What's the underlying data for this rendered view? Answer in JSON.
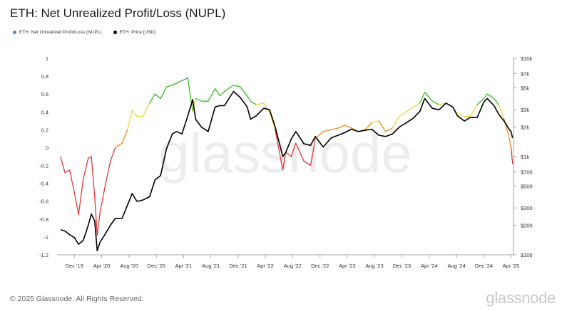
{
  "header": {
    "title": "ETH: Net Unrealized Profit/Loss (NUPL)"
  },
  "legend": [
    {
      "label": "ETH: Net Unrealized Profit/Loss (NUPL)",
      "color": "#5b7be0"
    },
    {
      "label": "ETH: Price [USD]",
      "color": "#000000"
    }
  ],
  "footer": {
    "copyright": "© 2025 Glassnode. All Rights Reserved.",
    "brand": "glassnode"
  },
  "watermark": "glassnode",
  "chart_data": {
    "type": "line",
    "x_ticks": [
      "Dec '19",
      "Apr '20",
      "Aug '20",
      "Dec '20",
      "Apr '21",
      "Aug '21",
      "Dec '21",
      "Apr '22",
      "Aug '22",
      "Dec '22",
      "Apr '23",
      "Aug '23",
      "Dec '23",
      "Apr '24",
      "Aug '24",
      "Dec '24",
      "Apr '25"
    ],
    "y_left_ticks": [
      "1",
      "0.8",
      "0.6",
      "0.4",
      "0.2",
      "0",
      "-0.2",
      "-0.4",
      "-0.6",
      "-0.8",
      "-1",
      "-1.2"
    ],
    "y_right_ticks": [
      "$10k",
      "$7k",
      "$5k",
      "$3k",
      "$2k",
      "$1k",
      "$700",
      "$500",
      "$300",
      "$200",
      "$100"
    ],
    "ylim_left": [
      -1.2,
      1
    ],
    "ylim_right": [
      100,
      10000
    ],
    "right_scale": "log",
    "grid": false,
    "series": [
      {
        "name": "ETH: Net Unrealized Profit/Loss (NUPL)",
        "color_zones": {
          "capitulation": "#e03a3a",
          "hope_fear": "#f08a1c",
          "optimism_anxiety": "#f2d43c",
          "belief_denial": "#34c21c",
          "euphoria_greed": "#5b7be0"
        },
        "x": [
          "2019-10-01",
          "2019-10-20",
          "2019-11-10",
          "2019-12-01",
          "2019-12-20",
          "2020-01-10",
          "2020-02-01",
          "2020-02-15",
          "2020-03-01",
          "2020-03-12",
          "2020-03-25",
          "2020-04-15",
          "2020-05-10",
          "2020-06-01",
          "2020-07-01",
          "2020-07-25",
          "2020-08-15",
          "2020-09-05",
          "2020-10-01",
          "2020-11-01",
          "2020-11-25",
          "2020-12-20",
          "2021-01-15",
          "2021-02-10",
          "2021-03-01",
          "2021-03-25",
          "2021-04-20",
          "2021-05-12",
          "2021-05-25",
          "2021-06-20",
          "2021-07-20",
          "2021-08-20",
          "2021-09-10",
          "2021-10-01",
          "2021-11-10",
          "2021-12-10",
          "2022-01-10",
          "2022-01-25",
          "2022-02-20",
          "2022-03-25",
          "2022-04-20",
          "2022-05-15",
          "2022-06-18",
          "2022-07-01",
          "2022-07-25",
          "2022-08-15",
          "2022-09-20",
          "2022-10-20",
          "2022-11-10",
          "2022-12-15",
          "2023-01-20",
          "2023-02-20",
          "2023-03-20",
          "2023-04-20",
          "2023-05-20",
          "2023-06-20",
          "2023-07-20",
          "2023-08-20",
          "2023-09-20",
          "2023-10-20",
          "2023-11-20",
          "2023-12-20",
          "2024-01-20",
          "2024-02-20",
          "2024-03-12",
          "2024-04-15",
          "2024-05-15",
          "2024-06-15",
          "2024-07-15",
          "2024-08-05",
          "2024-09-05",
          "2024-10-01",
          "2024-11-01",
          "2024-12-01",
          "2024-12-16",
          "2025-01-15",
          "2025-02-05",
          "2025-03-01",
          "2025-03-20",
          "2025-04-01",
          "2025-04-08"
        ],
        "values": [
          -0.1,
          -0.28,
          -0.25,
          -0.5,
          -0.75,
          -0.35,
          -0.12,
          -0.1,
          -0.55,
          -0.98,
          -0.72,
          -0.45,
          -0.15,
          0.0,
          0.05,
          0.2,
          0.42,
          0.35,
          0.35,
          0.5,
          0.6,
          0.55,
          0.68,
          0.7,
          0.72,
          0.75,
          0.78,
          0.4,
          0.55,
          0.52,
          0.52,
          0.66,
          0.58,
          0.63,
          0.7,
          0.68,
          0.58,
          0.52,
          0.48,
          0.5,
          0.4,
          0.2,
          -0.25,
          -0.05,
          -0.1,
          0.05,
          -0.15,
          -0.2,
          0.1,
          0.18,
          0.2,
          0.22,
          0.25,
          0.22,
          0.18,
          0.2,
          0.28,
          0.3,
          0.18,
          0.22,
          0.35,
          0.4,
          0.45,
          0.5,
          0.62,
          0.52,
          0.48,
          0.5,
          0.45,
          0.38,
          0.35,
          0.35,
          0.48,
          0.55,
          0.6,
          0.55,
          0.48,
          0.32,
          0.15,
          0.0,
          -0.18
        ]
      },
      {
        "name": "ETH: Price [USD]",
        "color": "#000000",
        "x": [
          "2019-10-01",
          "2019-10-20",
          "2019-11-10",
          "2019-12-01",
          "2019-12-20",
          "2020-01-10",
          "2020-02-01",
          "2020-02-15",
          "2020-03-01",
          "2020-03-12",
          "2020-03-25",
          "2020-04-15",
          "2020-05-10",
          "2020-06-01",
          "2020-07-01",
          "2020-07-25",
          "2020-08-15",
          "2020-09-05",
          "2020-10-01",
          "2020-11-01",
          "2020-11-25",
          "2020-12-20",
          "2021-01-15",
          "2021-02-10",
          "2021-03-01",
          "2021-03-25",
          "2021-04-20",
          "2021-05-12",
          "2021-05-25",
          "2021-06-20",
          "2021-07-20",
          "2021-08-20",
          "2021-09-10",
          "2021-10-01",
          "2021-11-10",
          "2021-12-10",
          "2022-01-10",
          "2022-01-25",
          "2022-02-20",
          "2022-03-25",
          "2022-04-20",
          "2022-05-15",
          "2022-06-18",
          "2022-07-01",
          "2022-07-25",
          "2022-08-15",
          "2022-09-20",
          "2022-10-20",
          "2022-11-10",
          "2022-12-15",
          "2023-01-20",
          "2023-02-20",
          "2023-03-20",
          "2023-04-20",
          "2023-05-20",
          "2023-06-20",
          "2023-07-20",
          "2023-08-20",
          "2023-09-20",
          "2023-10-20",
          "2023-11-20",
          "2023-12-20",
          "2024-01-20",
          "2024-02-20",
          "2024-03-12",
          "2024-04-15",
          "2024-05-15",
          "2024-06-15",
          "2024-07-15",
          "2024-08-05",
          "2024-09-05",
          "2024-10-01",
          "2024-11-01",
          "2024-12-01",
          "2024-12-16",
          "2025-01-15",
          "2025-02-05",
          "2025-03-01",
          "2025-03-20",
          "2025-04-01",
          "2025-04-08"
        ],
        "values": [
          180,
          175,
          160,
          150,
          128,
          140,
          200,
          260,
          220,
          110,
          135,
          160,
          200,
          235,
          235,
          320,
          420,
          350,
          360,
          390,
          580,
          640,
          1200,
          1700,
          1800,
          1700,
          2600,
          3800,
          2400,
          2000,
          1800,
          3200,
          3300,
          3300,
          4600,
          4000,
          3200,
          2400,
          2600,
          3100,
          3000,
          2000,
          1000,
          1100,
          1500,
          1800,
          1350,
          1300,
          1600,
          1250,
          1550,
          1650,
          1750,
          1900,
          1800,
          1850,
          1900,
          1650,
          1600,
          1700,
          2000,
          2200,
          2450,
          2900,
          3900,
          3100,
          3000,
          3500,
          3200,
          2600,
          2300,
          2500,
          2500,
          3600,
          3900,
          3300,
          2700,
          2300,
          1950,
          1800,
          1550
        ]
      }
    ]
  }
}
